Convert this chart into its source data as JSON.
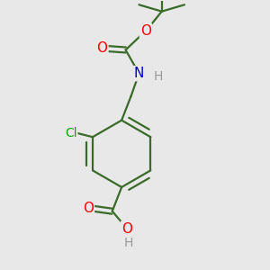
{
  "background_color": "#e8e8e8",
  "bond_color": "#3a6b28",
  "bond_width": 1.6,
  "atom_colors": {
    "O": "#ff0000",
    "N": "#0000cc",
    "Cl": "#00aa00",
    "H_gray": "#999999"
  },
  "figsize": [
    3.0,
    3.0
  ],
  "dpi": 100
}
